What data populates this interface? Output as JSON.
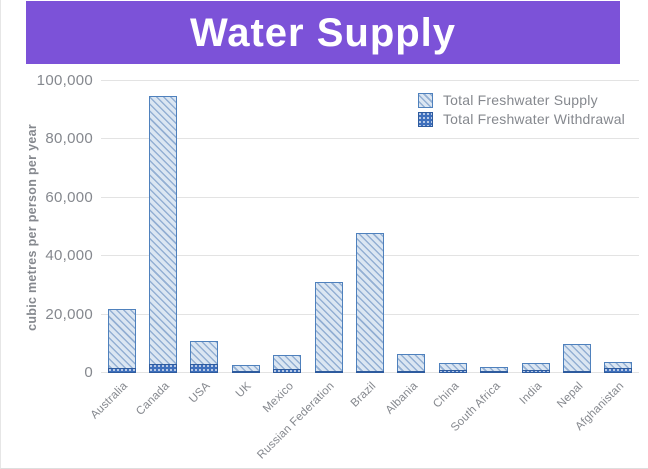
{
  "title_banner": {
    "text": "Water Supply",
    "background": "#7C52D8",
    "text_color": "#FFFFFF"
  },
  "chart_data": {
    "type": "bar",
    "title": "Water Supply",
    "xlabel": "",
    "ylabel": "cubic metres per person per year",
    "ylim": [
      0,
      100000
    ],
    "ytick_labels_bottom_to_top": [
      "0",
      "20,000",
      "40,000",
      "60,000",
      "80,000",
      "100,000"
    ],
    "grid": true,
    "legend_position": "top-right",
    "categories": [
      "Australia",
      "Canada",
      "USA",
      "UK",
      "Mexico",
      "Russian Federation",
      "Brazil",
      "Albania",
      "China",
      "South Africa",
      "India",
      "Nepal",
      "Afghanistan"
    ],
    "series": [
      {
        "name": "Total Freshwater Supply",
        "values": [
          22000,
          95000,
          11000,
          2800,
          6200,
          31000,
          48000,
          6500,
          3400,
          2100,
          3400,
          9800,
          3700
        ]
      },
      {
        "name": "Total Freshwater Withdrawal",
        "values": [
          1700,
          3100,
          3100,
          300,
          1400,
          500,
          300,
          500,
          900,
          500,
          1100,
          300,
          1600
        ]
      }
    ]
  },
  "colors": {
    "banner_bg": "#7C52D8",
    "banner_text": "#FFFFFF",
    "supply_fill": "#dbe6f2",
    "supply_hatch": "#93afd3",
    "supply_border": "#4f81bd",
    "withdrawal_fill": "#3e6fbc",
    "withdrawal_border": "#2e5b9e",
    "axis_text": "#85888e",
    "gridline": "#e3e3e3"
  }
}
